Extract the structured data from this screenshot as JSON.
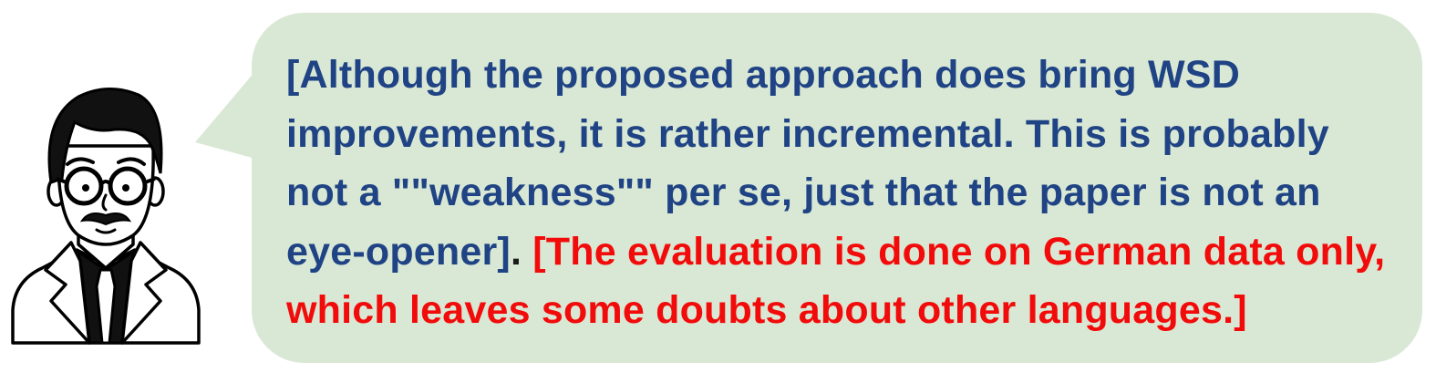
{
  "review": {
    "segments": [
      {
        "text": "[Although the proposed approach does bring WSD improvements, it is rather incremental. This is probably not a \"\"weakness\"\" per se, just that the paper is not an eye-opener]",
        "color": "#1f4384"
      },
      {
        "text": ". ",
        "color": "#1b1b1b"
      },
      {
        "text": "[The evaluation is done on German data only, which leaves some doubts about other languages.]",
        "color": "#f20b0b"
      }
    ]
  },
  "colors": {
    "bubble_fill": "#d9e8d4",
    "avatar_stroke": "#000000",
    "avatar_hair": "#111111",
    "avatar_face": "#ffffff"
  },
  "icons": {
    "reviewer": "reviewer-avatar-icon"
  }
}
